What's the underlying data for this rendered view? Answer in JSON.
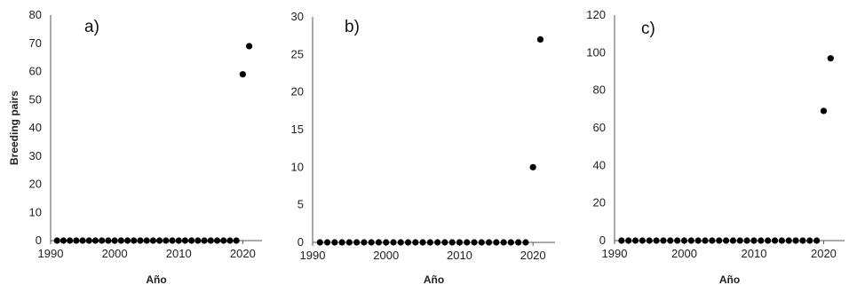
{
  "chart_data": [
    {
      "type": "scatter",
      "panel_label": "a)",
      "xlabel": "Año",
      "ylabel": "Breeding pairs",
      "xlim": [
        1990,
        2023
      ],
      "xticks": [
        1990,
        2000,
        2010,
        2020
      ],
      "ylim": [
        0,
        80
      ],
      "yticks": [
        0,
        10,
        20,
        30,
        40,
        50,
        60,
        70,
        80
      ],
      "grid": false,
      "x": [
        1991,
        1992,
        1993,
        1994,
        1995,
        1996,
        1997,
        1998,
        1999,
        2000,
        2001,
        2002,
        2003,
        2004,
        2005,
        2006,
        2007,
        2008,
        2009,
        2010,
        2011,
        2012,
        2013,
        2014,
        2015,
        2016,
        2017,
        2018,
        2019,
        2020,
        2021
      ],
      "y": [
        0,
        0,
        0,
        0,
        0,
        0,
        0,
        0,
        0,
        0,
        0,
        0,
        0,
        0,
        0,
        0,
        0,
        0,
        0,
        0,
        0,
        0,
        0,
        0,
        0,
        0,
        0,
        0,
        0,
        59,
        69
      ],
      "marker_color": "#000000"
    },
    {
      "type": "scatter",
      "panel_label": "b)",
      "xlabel": "Año",
      "ylabel": "",
      "xlim": [
        1990,
        2023
      ],
      "xticks": [
        1990,
        2000,
        2010,
        2020
      ],
      "ylim": [
        0,
        30
      ],
      "yticks": [
        0,
        5,
        10,
        15,
        20,
        25,
        30
      ],
      "grid": false,
      "x": [
        1991,
        1992,
        1993,
        1994,
        1995,
        1996,
        1997,
        1998,
        1999,
        2000,
        2001,
        2002,
        2003,
        2004,
        2005,
        2006,
        2007,
        2008,
        2009,
        2010,
        2011,
        2012,
        2013,
        2014,
        2015,
        2016,
        2017,
        2018,
        2019,
        2020,
        2021
      ],
      "y": [
        0,
        0,
        0,
        0,
        0,
        0,
        0,
        0,
        0,
        0,
        0,
        0,
        0,
        0,
        0,
        0,
        0,
        0,
        0,
        0,
        0,
        0,
        0,
        0,
        0,
        0,
        0,
        0,
        0,
        10,
        27
      ],
      "marker_color": "#000000"
    },
    {
      "type": "scatter",
      "panel_label": "c)",
      "xlabel": "Año",
      "ylabel": "",
      "xlim": [
        1990,
        2023
      ],
      "xticks": [
        1990,
        2000,
        2010,
        2020
      ],
      "ylim": [
        0,
        120
      ],
      "yticks": [
        0,
        20,
        40,
        60,
        80,
        100,
        120
      ],
      "grid": false,
      "x": [
        1991,
        1992,
        1993,
        1994,
        1995,
        1996,
        1997,
        1998,
        1999,
        2000,
        2001,
        2002,
        2003,
        2004,
        2005,
        2006,
        2007,
        2008,
        2009,
        2010,
        2011,
        2012,
        2013,
        2014,
        2015,
        2016,
        2017,
        2018,
        2019,
        2020,
        2021
      ],
      "y": [
        0,
        0,
        0,
        0,
        0,
        0,
        0,
        0,
        0,
        0,
        0,
        0,
        0,
        0,
        0,
        0,
        0,
        0,
        0,
        0,
        0,
        0,
        0,
        0,
        0,
        0,
        0,
        0,
        0,
        69,
        97
      ],
      "marker_color": "#000000"
    }
  ]
}
